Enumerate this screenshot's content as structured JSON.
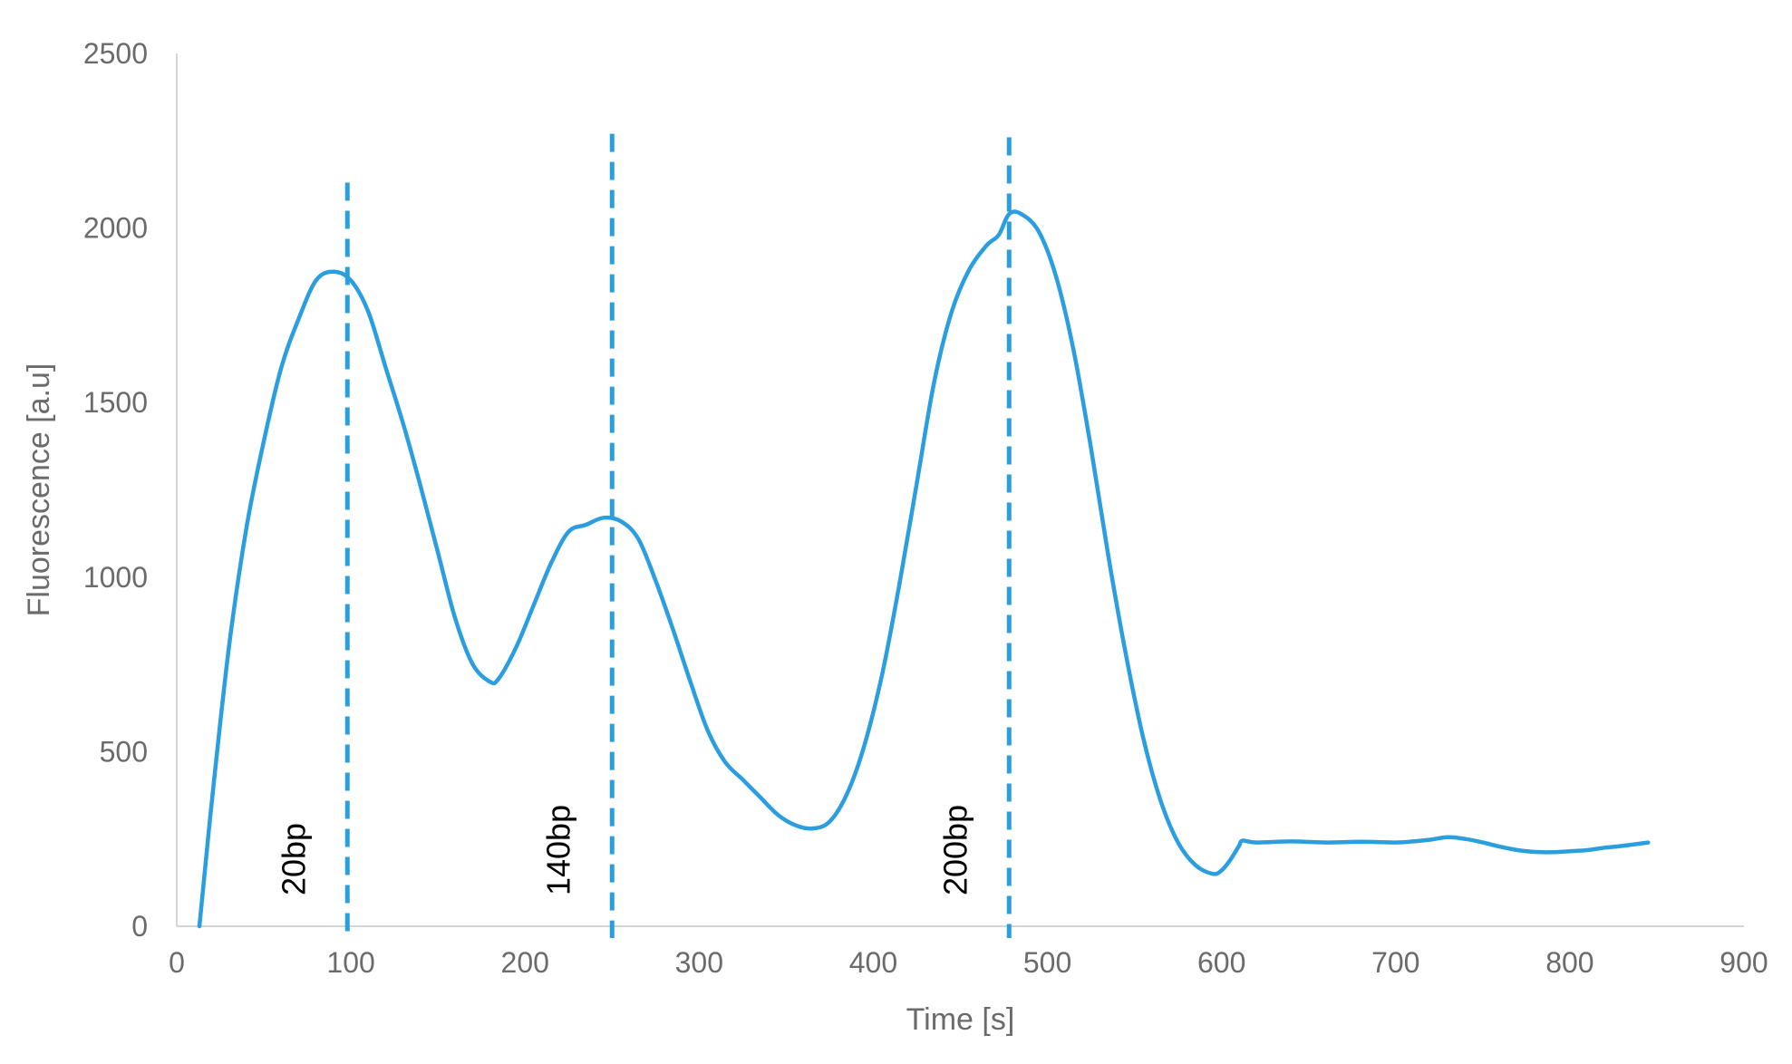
{
  "chart_data": {
    "type": "line",
    "title": "",
    "xlabel": "Time [s]",
    "ylabel": "Fluorescence [a.u]",
    "xlim": [
      0,
      900
    ],
    "ylim": [
      0,
      2500
    ],
    "x_ticks": [
      0,
      100,
      200,
      300,
      400,
      500,
      600,
      700,
      800,
      900
    ],
    "y_ticks": [
      0,
      500,
      1000,
      1500,
      2000,
      2500
    ],
    "grid": false,
    "legend": "none",
    "line_color": "#2a9ede",
    "series": [
      {
        "x": [
          13,
          20,
          30,
          40,
          50,
          60,
          70,
          80,
          90,
          100,
          110,
          120,
          130,
          140,
          150,
          160,
          170,
          180,
          185,
          195,
          205,
          215,
          225,
          235,
          245,
          255,
          265,
          275,
          285,
          295,
          305,
          315,
          325,
          335,
          345,
          355,
          365,
          375,
          385,
          395,
          405,
          415,
          425,
          435,
          445,
          455,
          465,
          472,
          478,
          485,
          495,
          505,
          515,
          525,
          535,
          545,
          555,
          565,
          575,
          585,
          595,
          600,
          605,
          610,
          612,
          620,
          640,
          660,
          680,
          700,
          710,
          720,
          730,
          740,
          750,
          760,
          770,
          780,
          790,
          800,
          810,
          820,
          830,
          845
        ],
        "y": [
          0,
          350,
          800,
          1140,
          1390,
          1600,
          1740,
          1850,
          1875,
          1850,
          1760,
          1600,
          1440,
          1260,
          1070,
          880,
          750,
          700,
          710,
          800,
          920,
          1040,
          1130,
          1150,
          1170,
          1160,
          1110,
          990,
          850,
          700,
          560,
          470,
          420,
          370,
          320,
          290,
          280,
          300,
          380,
          520,
          720,
          980,
          1270,
          1560,
          1760,
          1880,
          1950,
          1980,
          2040,
          2040,
          1990,
          1860,
          1650,
          1370,
          1060,
          780,
          540,
          360,
          240,
          175,
          150,
          160,
          190,
          230,
          245,
          240,
          243,
          240,
          242,
          240,
          243,
          248,
          255,
          250,
          240,
          228,
          218,
          213,
          212,
          215,
          218,
          225,
          230,
          240
        ]
      }
    ],
    "markers": [
      {
        "x": 98,
        "label": "20bp",
        "top": 2130
      },
      {
        "x": 250,
        "label": "140bp",
        "top": 2270
      },
      {
        "x": 478,
        "label": "200bp",
        "top": 2260
      }
    ]
  }
}
